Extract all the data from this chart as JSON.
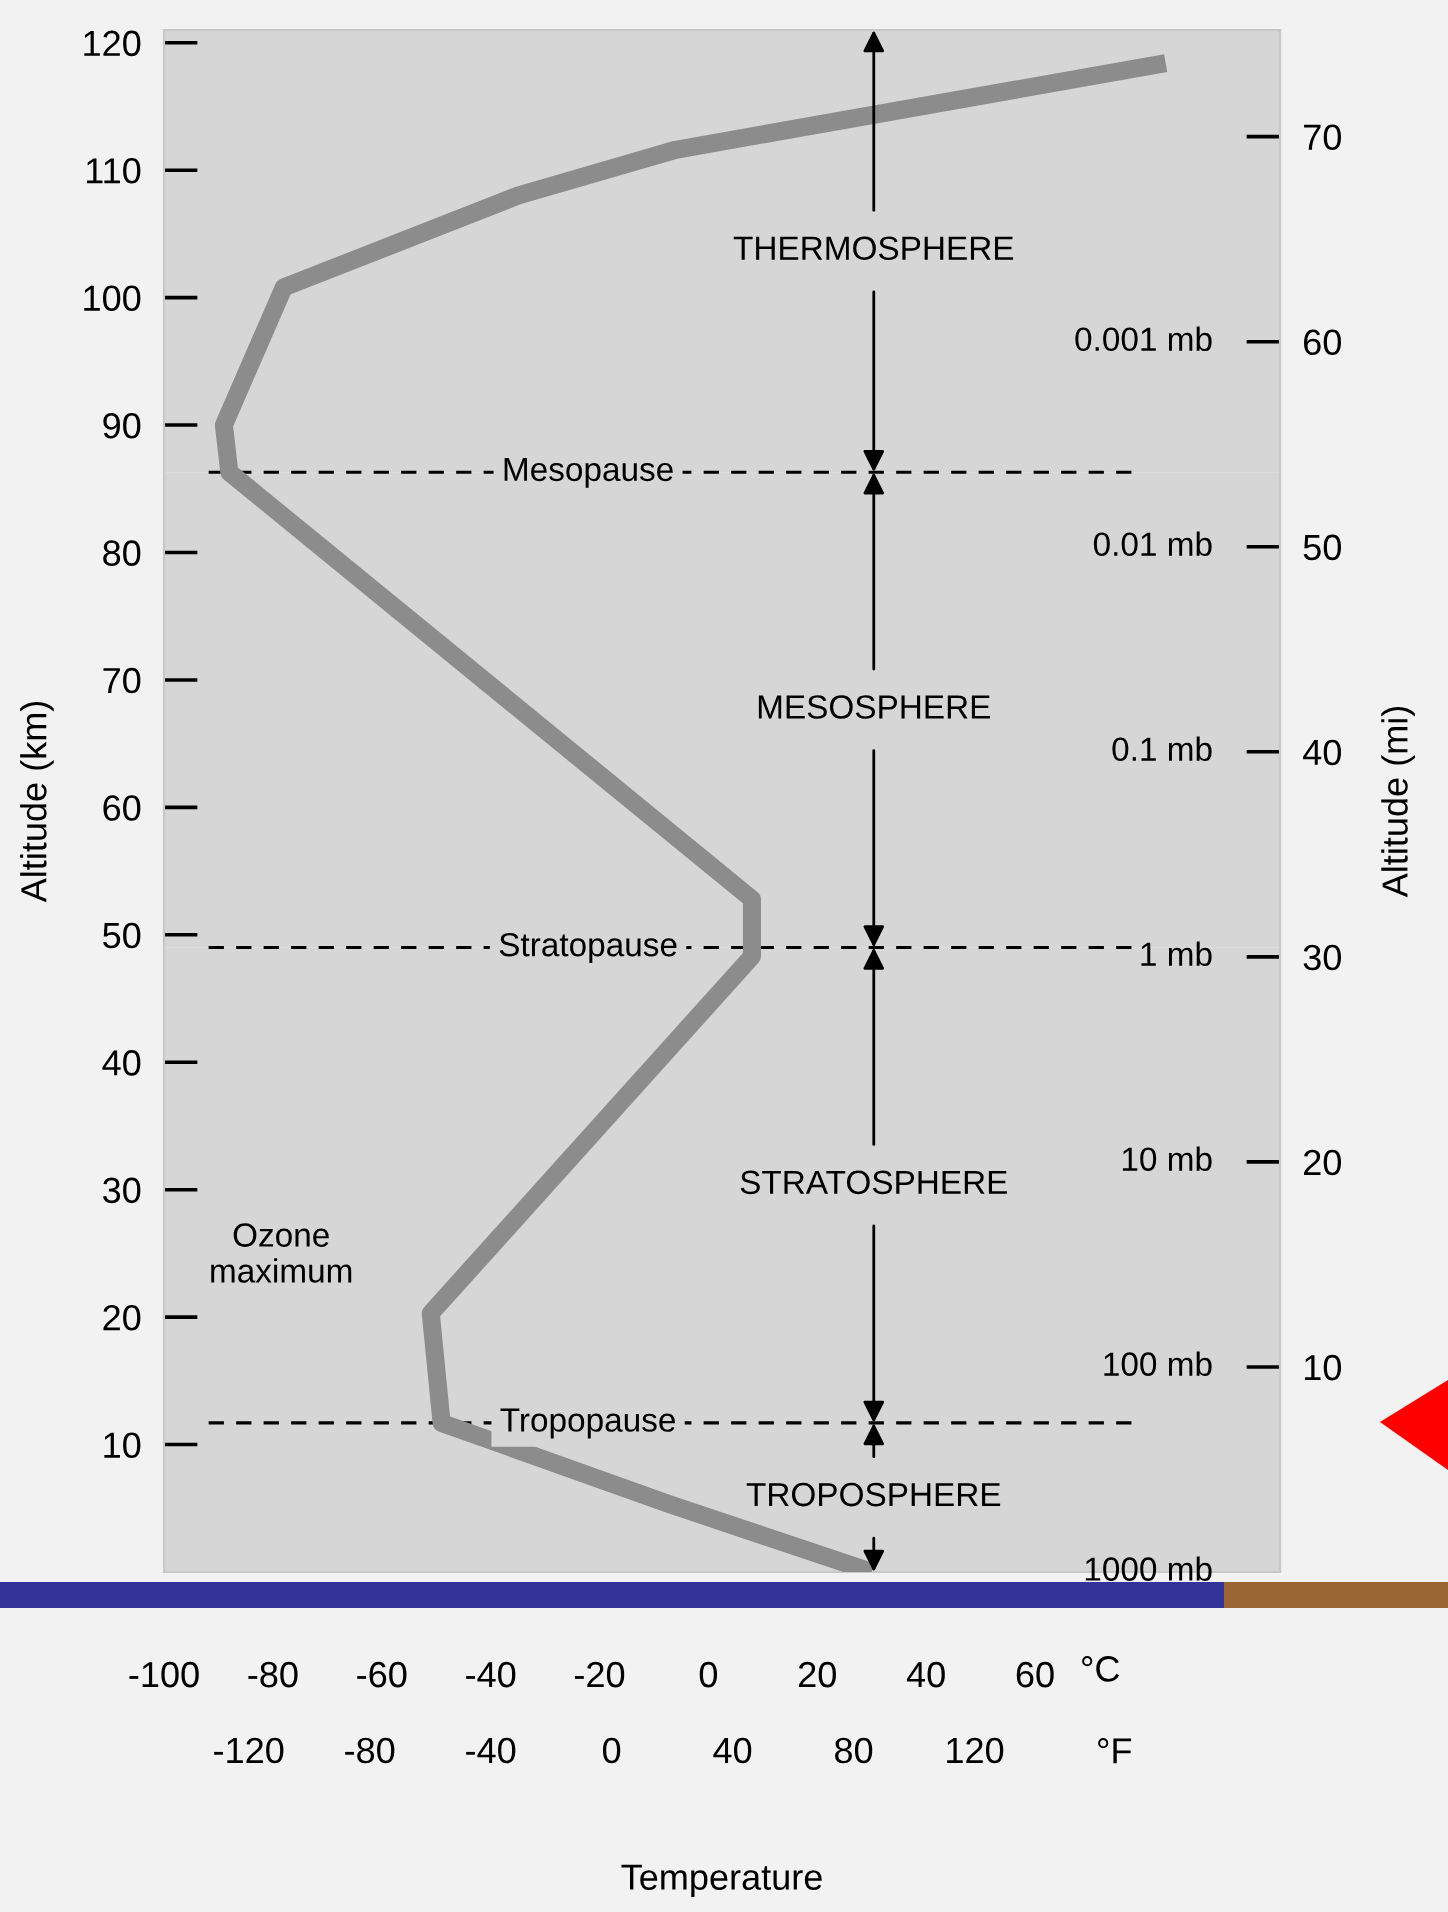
{
  "chart_data": {
    "type": "line",
    "xlabel": "Temperature",
    "ylabel": "Altitude (km)",
    "y2label": "Altitude (mi)",
    "x2label": "°F",
    "series": [
      {
        "color": "#8c8c8c",
        "x": [
          30,
          -7,
          -49,
          -51,
          8,
          8,
          -88,
          -89,
          -78,
          -35,
          -6,
          84
        ],
        "values": [
          0,
          5.3,
          11.7,
          20.3,
          48.3,
          52.8,
          86.3,
          90,
          100.8,
          108,
          111.6,
          118.4
        ]
      }
    ],
    "xlim": [
      -100,
      105
    ],
    "xticks": [
      -100,
      -80,
      -60,
      -40,
      -20,
      0,
      20,
      40,
      60
    ],
    "x2lim": [
      -148,
      221
    ],
    "x2ticks": [
      -120,
      -80,
      -40,
      0,
      40,
      80,
      120
    ],
    "ylim": [
      0,
      121
    ],
    "yticks": [
      10,
      20,
      30,
      40,
      50,
      60,
      70,
      80,
      90,
      100,
      110,
      120
    ],
    "y2lim": [
      0,
      75.2
    ],
    "y2ticks": [
      10,
      20,
      30,
      40,
      50,
      60,
      70
    ],
    "ref_lines": [
      {
        "axis": "y",
        "value": 86.3,
        "label": "Mesopause",
        "line_style": "dashed"
      },
      {
        "axis": "y",
        "value": 49,
        "label": "Stratopause",
        "line_style": "dashed"
      },
      {
        "axis": "y",
        "value": 11.7,
        "label": "Tropopause",
        "line_style": "dashed"
      }
    ],
    "bands": [
      {
        "axis": "y",
        "from": 86.3,
        "to": 121,
        "label": "THERMOSPHERE",
        "color": "#d6d6d6"
      },
      {
        "axis": "y",
        "from": 49,
        "to": 86.3,
        "label": "MESOSPHERE",
        "color": "#d6d6d6"
      },
      {
        "axis": "y",
        "from": 11.7,
        "to": 49,
        "label": "STRATOSPHERE",
        "color": "#d6d6d6"
      },
      {
        "axis": "y",
        "from": 0,
        "to": 11.7,
        "label": "TROPOSPHERE",
        "color": "#d6d6d6"
      }
    ],
    "y3lim": [
      1000,
      3e-05
    ],
    "log": "y3",
    "y3ticks": [
      {
        "value": 1000,
        "label": "1000 mb"
      },
      {
        "value": 100,
        "label": "100 mb"
      },
      {
        "value": 10,
        "label": "10 mb"
      },
      {
        "value": 1,
        "label": "1 mb"
      },
      {
        "value": 0.1,
        "label": "0.1 mb"
      },
      {
        "value": 0.01,
        "label": "0.01 mb"
      },
      {
        "value": 0.001,
        "label": "0.001 mb"
      }
    ],
    "annotations": [
      "°C",
      "Ozone\nmaximum"
    ],
    "grid": false,
    "legend": false,
    "marker": "none",
    "line_style": "solid"
  }
}
